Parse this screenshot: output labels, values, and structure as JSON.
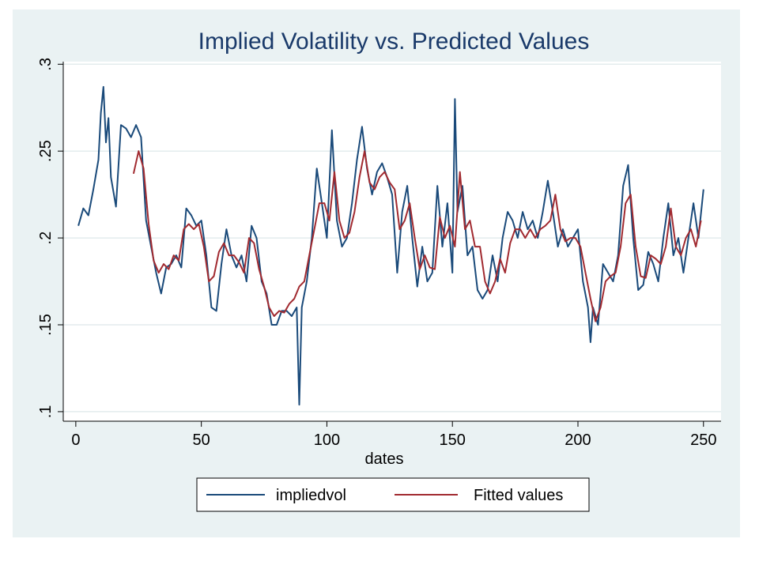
{
  "chart_data": {
    "type": "line",
    "title": "Implied Volatility vs. Predicted Values",
    "xlabel": "dates",
    "ylabel": "",
    "xlim": [
      0,
      250
    ],
    "ylim": [
      0.1,
      0.3
    ],
    "xticks": [
      0,
      50,
      100,
      150,
      200,
      250
    ],
    "xtick_labels": [
      "0",
      "50",
      "100",
      "150",
      "200",
      "250"
    ],
    "yticks": [
      0.1,
      0.15,
      0.2,
      0.25,
      0.3
    ],
    "ytick_labels": [
      ".1",
      ".15",
      ".2",
      ".25",
      ".3"
    ],
    "grid": true,
    "legend_position": "bottom",
    "series": [
      {
        "name": "impliedvol",
        "color": "#1a4a7a",
        "x": [
          1,
          3,
          5,
          7,
          9,
          10,
          11,
          12,
          13,
          14,
          16,
          18,
          20,
          22,
          24,
          26,
          28,
          30,
          32,
          34,
          36,
          38,
          40,
          42,
          44,
          46,
          48,
          50,
          52,
          54,
          56,
          58,
          60,
          62,
          64,
          66,
          68,
          70,
          72,
          74,
          76,
          78,
          80,
          82,
          84,
          86,
          88,
          89,
          90,
          92,
          94,
          96,
          98,
          100,
          102,
          104,
          106,
          108,
          110,
          112,
          114,
          116,
          118,
          120,
          122,
          124,
          126,
          128,
          130,
          132,
          134,
          136,
          138,
          140,
          142,
          144,
          146,
          148,
          150,
          151,
          152,
          154,
          156,
          158,
          160,
          162,
          164,
          166,
          168,
          170,
          172,
          174,
          176,
          178,
          180,
          182,
          184,
          186,
          188,
          190,
          192,
          194,
          196,
          198,
          200,
          202,
          204,
          205,
          206,
          208,
          210,
          212,
          214,
          216,
          218,
          220,
          222,
          224,
          226,
          228,
          230,
          232,
          234,
          236,
          238,
          240,
          242,
          244,
          246,
          248,
          250
        ],
        "y": [
          0.207,
          0.217,
          0.213,
          0.228,
          0.245,
          0.272,
          0.287,
          0.255,
          0.269,
          0.235,
          0.218,
          0.265,
          0.263,
          0.258,
          0.265,
          0.258,
          0.21,
          0.195,
          0.18,
          0.168,
          0.183,
          0.185,
          0.19,
          0.183,
          0.217,
          0.213,
          0.207,
          0.21,
          0.19,
          0.16,
          0.158,
          0.185,
          0.205,
          0.19,
          0.183,
          0.19,
          0.175,
          0.207,
          0.2,
          0.175,
          0.168,
          0.15,
          0.15,
          0.158,
          0.158,
          0.155,
          0.16,
          0.104,
          0.16,
          0.175,
          0.2,
          0.24,
          0.22,
          0.2,
          0.262,
          0.21,
          0.195,
          0.2,
          0.22,
          0.245,
          0.264,
          0.24,
          0.225,
          0.238,
          0.243,
          0.235,
          0.225,
          0.18,
          0.215,
          0.23,
          0.2,
          0.172,
          0.195,
          0.175,
          0.18,
          0.23,
          0.195,
          0.22,
          0.18,
          0.28,
          0.215,
          0.23,
          0.19,
          0.195,
          0.17,
          0.165,
          0.17,
          0.19,
          0.175,
          0.2,
          0.215,
          0.21,
          0.2,
          0.215,
          0.205,
          0.21,
          0.2,
          0.215,
          0.233,
          0.215,
          0.195,
          0.205,
          0.195,
          0.2,
          0.205,
          0.175,
          0.16,
          0.14,
          0.16,
          0.15,
          0.185,
          0.18,
          0.175,
          0.19,
          0.23,
          0.242,
          0.2,
          0.17,
          0.173,
          0.192,
          0.185,
          0.175,
          0.2,
          0.22,
          0.19,
          0.2,
          0.18,
          0.2,
          0.22,
          0.2,
          0.228
        ]
      },
      {
        "name": "Fitted values",
        "color": "#a12a30",
        "x": [
          23,
          25,
          27,
          29,
          31,
          33,
          35,
          37,
          39,
          41,
          43,
          45,
          47,
          49,
          51,
          53,
          55,
          57,
          59,
          61,
          63,
          65,
          67,
          69,
          71,
          73,
          75,
          77,
          79,
          81,
          83,
          85,
          87,
          89,
          91,
          93,
          95,
          97,
          99,
          101,
          103,
          105,
          107,
          109,
          111,
          113,
          115,
          117,
          119,
          121,
          123,
          125,
          127,
          129,
          131,
          133,
          135,
          137,
          139,
          141,
          143,
          145,
          147,
          149,
          151,
          153,
          155,
          157,
          159,
          161,
          163,
          165,
          167,
          169,
          171,
          173,
          175,
          177,
          179,
          181,
          183,
          185,
          187,
          189,
          191,
          193,
          195,
          197,
          199,
          201,
          203,
          205,
          207,
          209,
          211,
          213,
          215,
          217,
          219,
          221,
          223,
          225,
          227,
          229,
          231,
          233,
          235,
          237,
          239,
          241,
          243,
          245,
          247,
          249
        ],
        "y": [
          0.237,
          0.25,
          0.24,
          0.208,
          0.187,
          0.18,
          0.185,
          0.182,
          0.19,
          0.187,
          0.205,
          0.208,
          0.205,
          0.208,
          0.195,
          0.175,
          0.178,
          0.192,
          0.197,
          0.19,
          0.19,
          0.186,
          0.18,
          0.2,
          0.197,
          0.182,
          0.172,
          0.16,
          0.155,
          0.158,
          0.157,
          0.162,
          0.165,
          0.172,
          0.175,
          0.19,
          0.205,
          0.22,
          0.22,
          0.21,
          0.238,
          0.21,
          0.2,
          0.203,
          0.215,
          0.235,
          0.25,
          0.232,
          0.228,
          0.235,
          0.238,
          0.232,
          0.228,
          0.205,
          0.21,
          0.22,
          0.2,
          0.182,
          0.19,
          0.183,
          0.182,
          0.212,
          0.2,
          0.207,
          0.195,
          0.238,
          0.205,
          0.21,
          0.195,
          0.195,
          0.175,
          0.168,
          0.175,
          0.188,
          0.18,
          0.197,
          0.205,
          0.205,
          0.2,
          0.205,
          0.2,
          0.205,
          0.207,
          0.21,
          0.225,
          0.205,
          0.198,
          0.2,
          0.2,
          0.195,
          0.18,
          0.165,
          0.152,
          0.16,
          0.175,
          0.178,
          0.18,
          0.195,
          0.22,
          0.225,
          0.195,
          0.178,
          0.177,
          0.19,
          0.188,
          0.185,
          0.195,
          0.217,
          0.195,
          0.19,
          0.2,
          0.205,
          0.195,
          0.21
        ]
      }
    ]
  }
}
